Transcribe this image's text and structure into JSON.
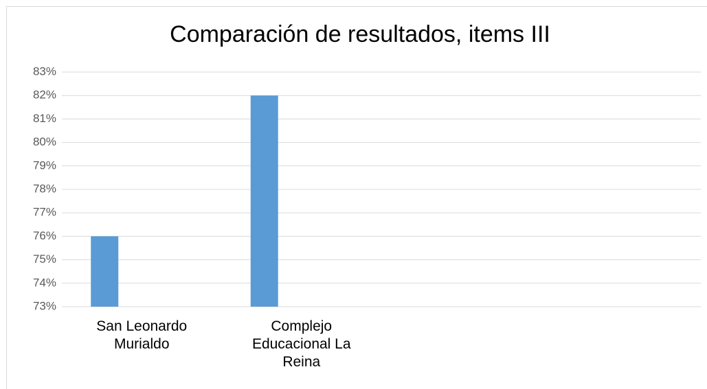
{
  "chart_data": {
    "type": "bar",
    "title": "Comparación de resultados, items III",
    "categories": [
      "San Leonardo Murialdo",
      "Complejo Educacional La Reina",
      null,
      null
    ],
    "values": [
      76,
      82,
      null,
      null
    ],
    "color": "#5b9bd5",
    "ylim": [
      73,
      83
    ],
    "yticks": [
      {
        "value": 73,
        "label": "73%"
      },
      {
        "value": 74,
        "label": "74%"
      },
      {
        "value": 75,
        "label": "75%"
      },
      {
        "value": 76,
        "label": "76%"
      },
      {
        "value": 77,
        "label": "77%"
      },
      {
        "value": 78,
        "label": "78%"
      },
      {
        "value": 79,
        "label": "79%"
      },
      {
        "value": 80,
        "label": "80%"
      },
      {
        "value": 81,
        "label": "81%"
      },
      {
        "value": 82,
        "label": "82%"
      },
      {
        "value": 83,
        "label": "83%"
      }
    ],
    "grid": true
  }
}
